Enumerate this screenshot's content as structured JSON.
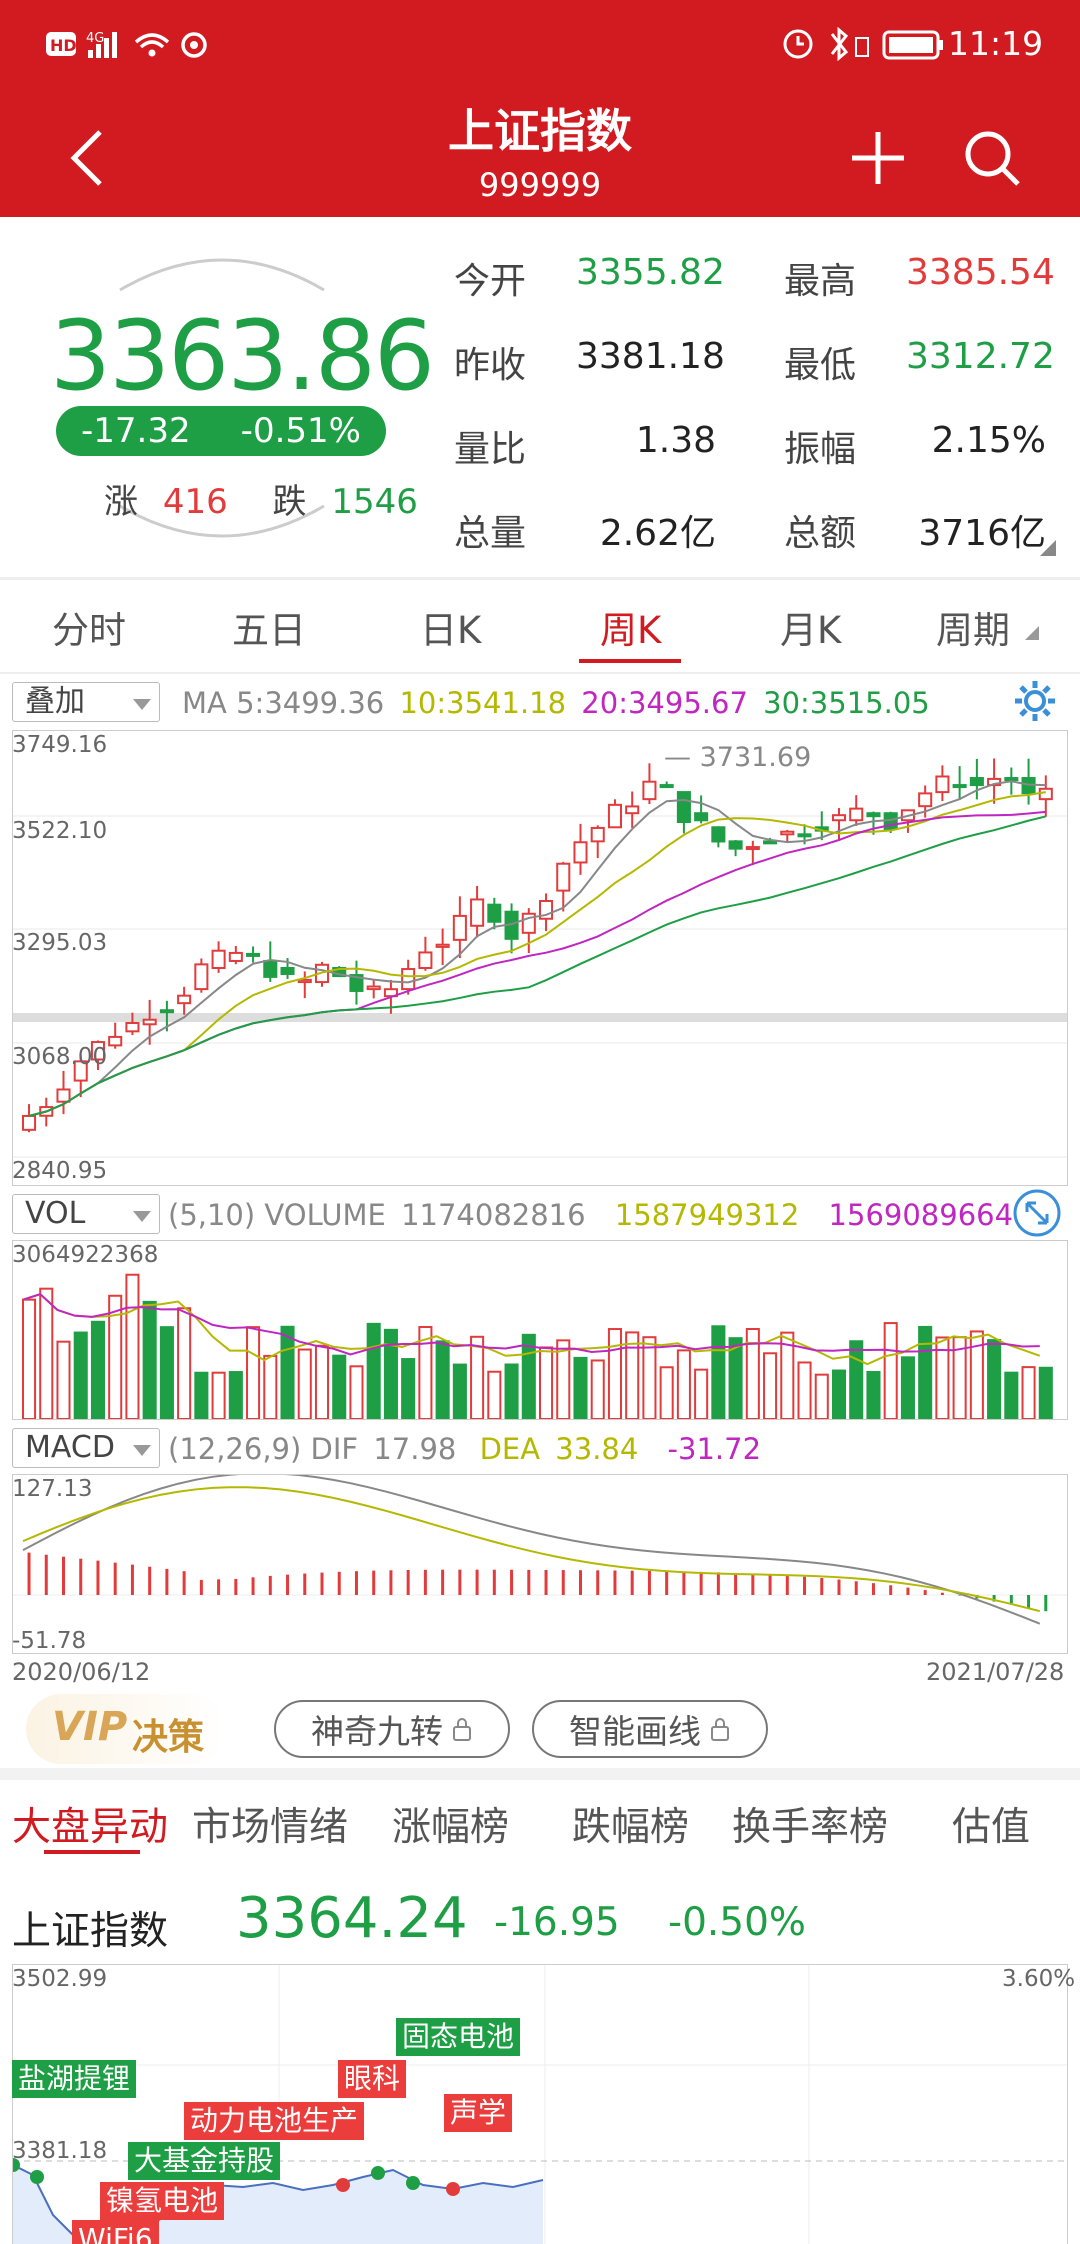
{
  "status_bar": {
    "left_icons": [
      "hd-icon",
      "4g-signal-icon",
      "wifi-icon",
      "sync-icon"
    ],
    "right_icons": [
      "alarm-icon",
      "bluetooth-icon",
      "battery-icon"
    ],
    "time": "11:19"
  },
  "header": {
    "title": "上证指数",
    "code": "999999"
  },
  "quote": {
    "price": "3363.86",
    "change": "-17.32",
    "change_pct": "-0.51%",
    "up_label": "涨",
    "up_count": "416",
    "down_label": "跌",
    "down_count": "1546",
    "stats": [
      {
        "label": "今开",
        "value": "3355.82"
      },
      {
        "label": "最高",
        "value": "3385.54"
      },
      {
        "label": "昨收",
        "value": "3381.18"
      },
      {
        "label": "最低",
        "value": "3312.72"
      },
      {
        "label": "量比",
        "value": "1.38"
      },
      {
        "label": "振幅",
        "value": "2.15%"
      },
      {
        "label": "总量",
        "value": "2.62亿"
      },
      {
        "label": "总额",
        "value": "3716亿"
      }
    ]
  },
  "period_tabs": [
    "分时",
    "五日",
    "日K",
    "周K",
    "月K",
    "周期"
  ],
  "active_period": "周K",
  "kline": {
    "overlay_select": "叠加",
    "ma_label": "MA 5:",
    "ma5": "3499.36",
    "ma10_label": "10:",
    "ma10": "3541.18",
    "ma20_label": "20:",
    "ma20": "3495.67",
    "ma30_label": "30:",
    "ma30": "3515.05",
    "y_ticks": [
      "3749.16",
      "3522.10",
      "3295.03",
      "3068.00",
      "2840.95"
    ],
    "high_mark": "3731.69"
  },
  "volume": {
    "select": "VOL",
    "params": "(5,10) VOLUME",
    "value": "1174082816",
    "ma5": "1587949312",
    "ma10": "1569089664",
    "y_max": "3064922368"
  },
  "macd": {
    "select": "MACD",
    "params": "(12,26,9) DIF",
    "dif": "17.98",
    "dea_label": "DEA",
    "dea": "33.84",
    "macd": "-31.72",
    "y_max": "127.13",
    "y_min": "-51.78"
  },
  "date_range": {
    "start": "2020/06/12",
    "end": "2021/07/28"
  },
  "vip": {
    "label": "VIP",
    "suffix": "决策",
    "tools": [
      "神奇九转",
      "智能画线"
    ]
  },
  "market_tabs": [
    "大盘异动",
    "市场情绪",
    "涨幅榜",
    "跌幅榜",
    "换手率榜",
    "估值"
  ],
  "active_market_tab": "大盘异动",
  "intraday": {
    "name": "上证指数",
    "price": "3364.24",
    "change": "-16.95",
    "change_pct": "-0.50%",
    "y_top": "3502.99",
    "y_top_pct": "3.60%",
    "y_mid": "3381.18",
    "tags": [
      {
        "text": "盐湖提锂",
        "color": "green"
      },
      {
        "text": "固态电池",
        "color": "green"
      },
      {
        "text": "眼科",
        "color": "red"
      },
      {
        "text": "动力电池生产",
        "color": "red"
      },
      {
        "text": "声学",
        "color": "red"
      },
      {
        "text": "大基金持股",
        "color": "green"
      },
      {
        "text": "镍氢电池",
        "color": "red"
      },
      {
        "text": "WiFi6",
        "color": "red"
      }
    ]
  },
  "colors": {
    "brand_red": "#d11b21",
    "up_red": "#e23b3b",
    "down_green": "#1e9e45",
    "ma10_yellow": "#b5b800",
    "ma20_magenta": "#c026c0"
  }
}
